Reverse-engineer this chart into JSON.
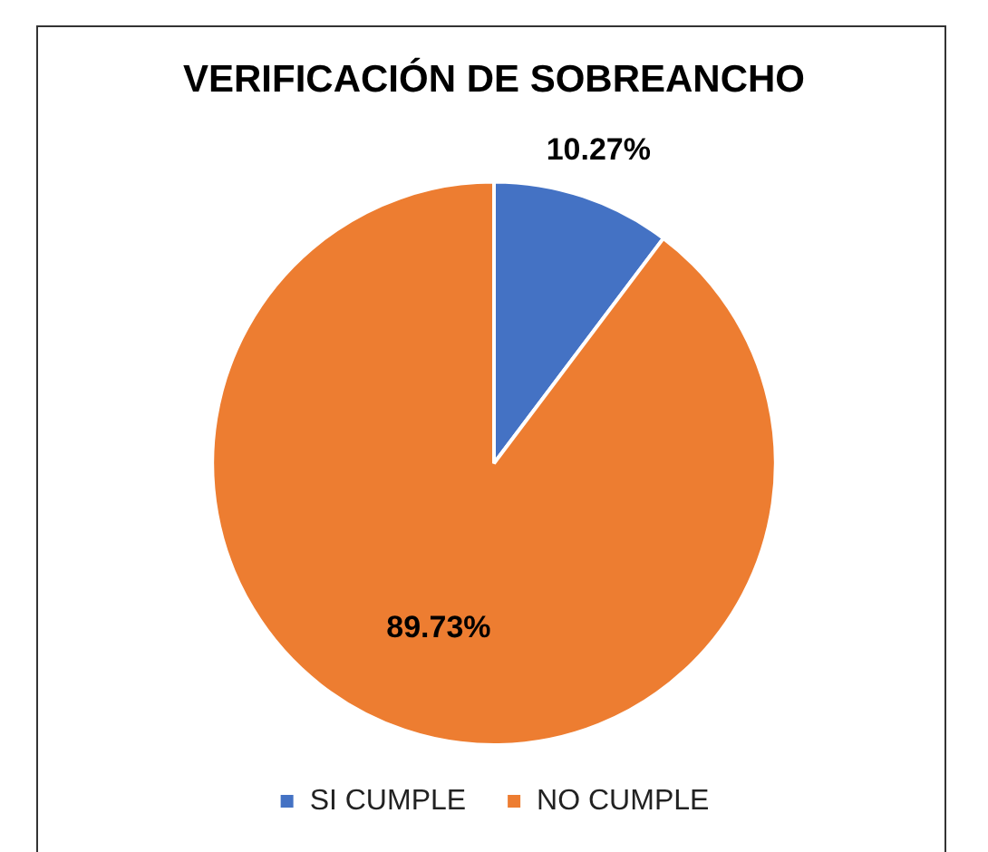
{
  "chart_data": {
    "type": "pie",
    "title": "VERIFICACIÓN DE SOBREANCHO",
    "categories": [
      "SI CUMPLE",
      "NO CUMPLE"
    ],
    "values": [
      10.27,
      89.73
    ],
    "value_labels": [
      "10.27%",
      "89.73%"
    ],
    "colors": [
      "#4472c4",
      "#ed7d31"
    ],
    "legend": "bottom"
  }
}
